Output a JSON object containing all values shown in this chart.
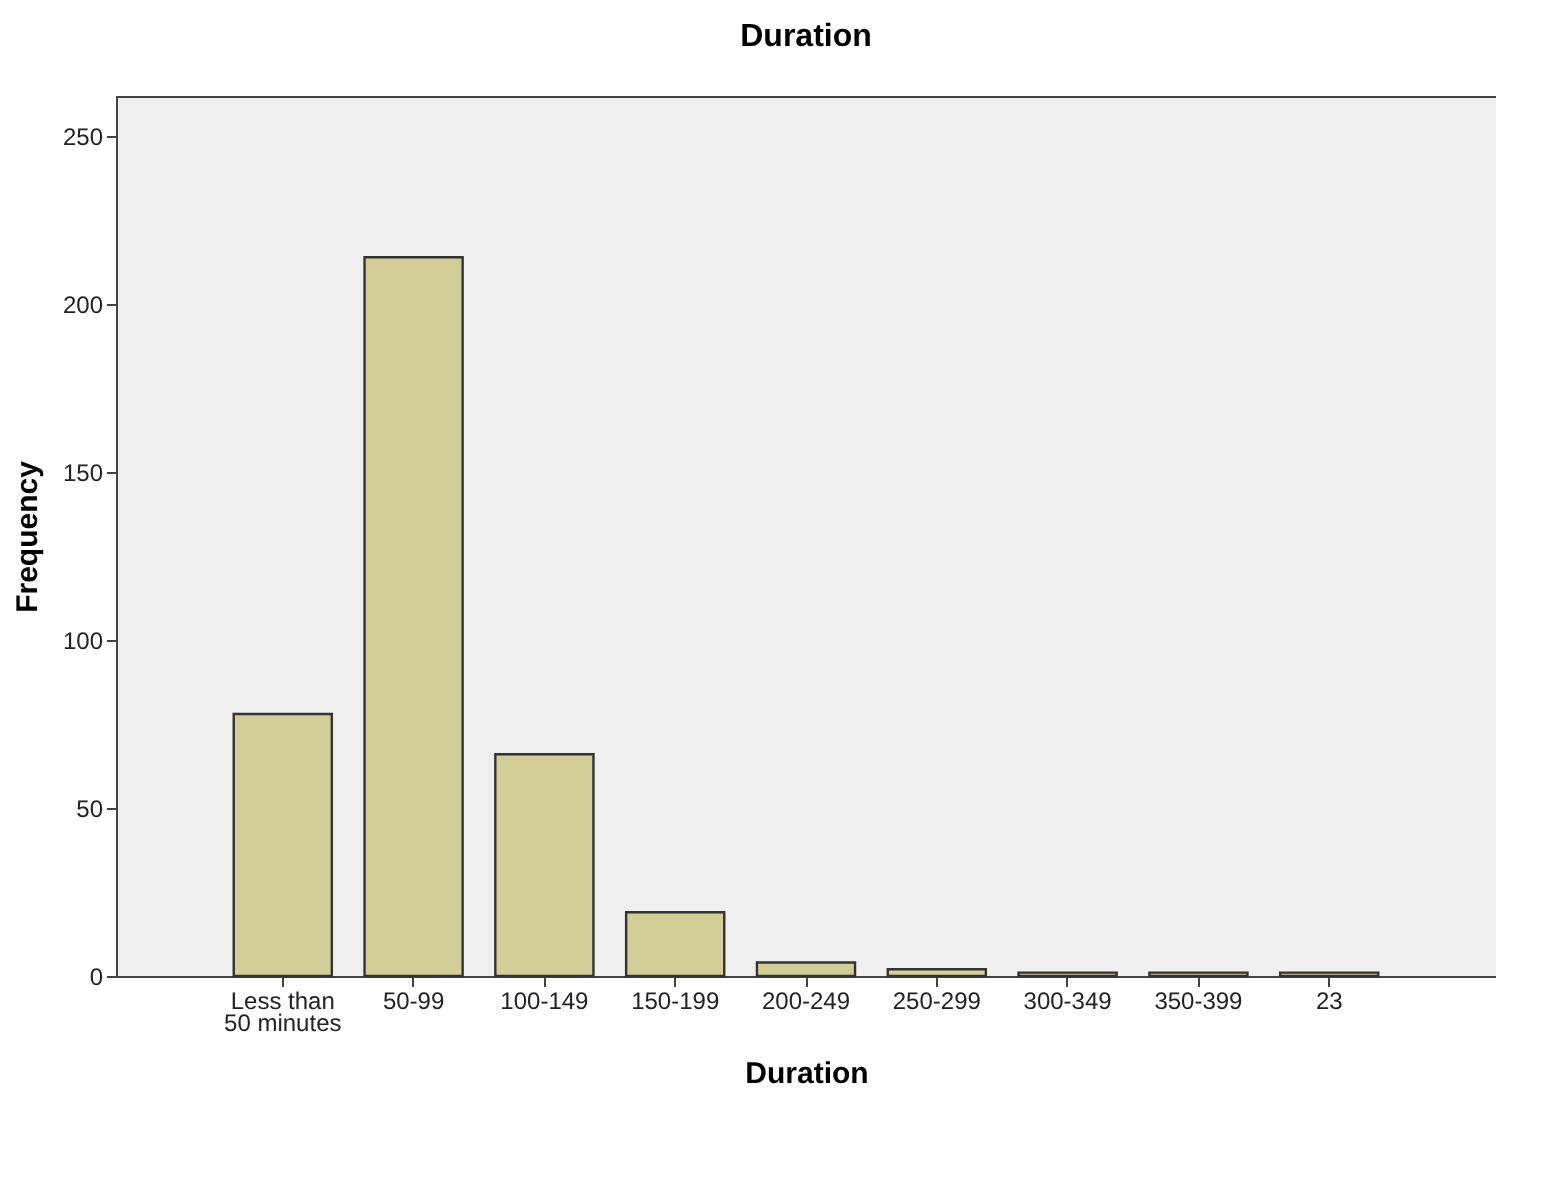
{
  "chart_data": {
    "type": "bar",
    "title": "Duration",
    "xlabel": "Duration",
    "ylabel": "Frequency",
    "categories": [
      "Less than 50 minutes",
      "50-99",
      "100-149",
      "150-199",
      "200-249",
      "250-299",
      "300-349",
      "350-399",
      "23"
    ],
    "values": [
      78,
      214,
      66,
      19,
      4,
      2,
      1,
      1,
      1
    ],
    "color": "#d3ce97",
    "ylim": [
      0,
      262
    ],
    "yticks": [
      0,
      50,
      100,
      150,
      200,
      250
    ],
    "grid": false
  }
}
